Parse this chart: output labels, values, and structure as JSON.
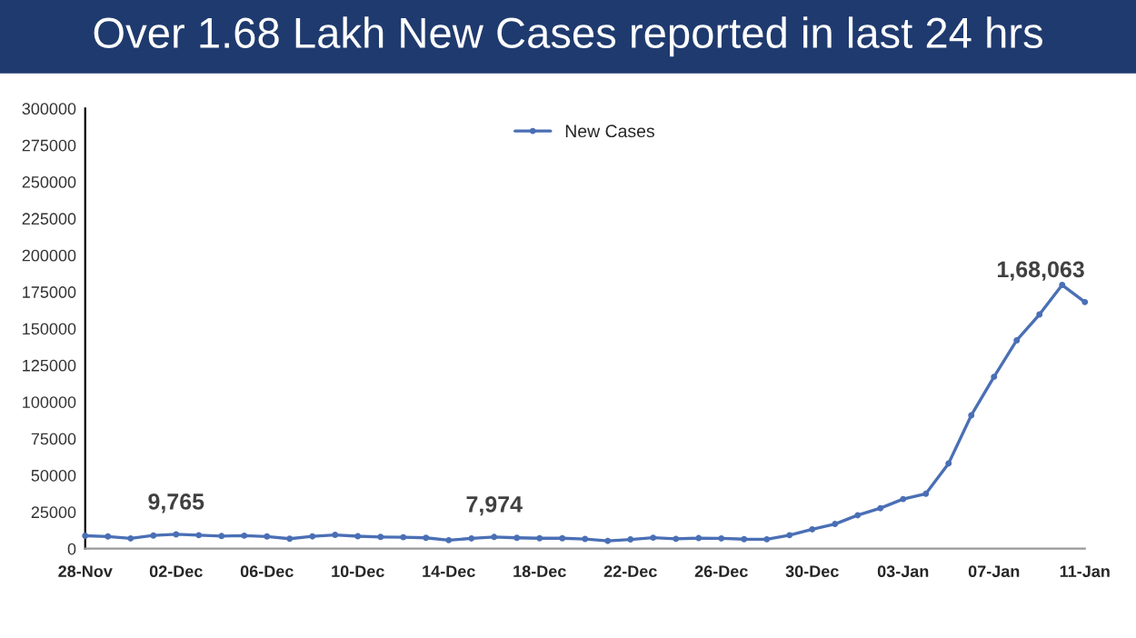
{
  "chart_data": {
    "type": "line",
    "title": "Over 1.68 Lakh New Cases reported in last 24 hrs",
    "categories": [
      "28-Nov",
      null,
      null,
      null,
      "02-Dec",
      null,
      null,
      null,
      "06-Dec",
      null,
      null,
      null,
      "10-Dec",
      null,
      null,
      null,
      "14-Dec",
      null,
      null,
      null,
      "18-Dec",
      null,
      null,
      null,
      "22-Dec",
      null,
      null,
      null,
      "26-Dec",
      null,
      null,
      null,
      "30-Dec",
      null,
      null,
      null,
      "03-Jan",
      null,
      null,
      null,
      "07-Jan",
      null,
      null,
      null,
      "11-Jan"
    ],
    "series": [
      {
        "name": "New Cases",
        "color": "#4a6fb5",
        "values": [
          8800,
          8300,
          7000,
          9000,
          9765,
          9200,
          8600,
          8900,
          8300,
          6800,
          8400,
          9400,
          8500,
          8000,
          7800,
          7400,
          5800,
          7000,
          7974,
          7400,
          7100,
          7100,
          6600,
          5300,
          6300,
          7500,
          6700,
          7200,
          7000,
          6500,
          6400,
          9200,
          13200,
          16800,
          22800,
          27600,
          33800,
          37400,
          58100,
          90900,
          117100,
          142000,
          159600,
          179700,
          168063
        ],
        "value_labels": [
          null,
          null,
          null,
          null,
          "9,765",
          null,
          null,
          null,
          null,
          null,
          null,
          null,
          null,
          null,
          null,
          null,
          null,
          null,
          "7,974",
          null,
          null,
          null,
          null,
          null,
          null,
          null,
          null,
          null,
          null,
          null,
          null,
          null,
          null,
          null,
          null,
          null,
          null,
          null,
          null,
          null,
          null,
          null,
          null,
          null,
          "1,68,063"
        ]
      }
    ],
    "ylim": [
      0,
      300000
    ],
    "yticks": [
      0,
      25000,
      50000,
      75000,
      100000,
      125000,
      150000,
      175000,
      200000,
      225000,
      250000,
      275000,
      300000
    ],
    "grid": false,
    "legend": "top",
    "marker": "circle",
    "line_style": "solid"
  }
}
